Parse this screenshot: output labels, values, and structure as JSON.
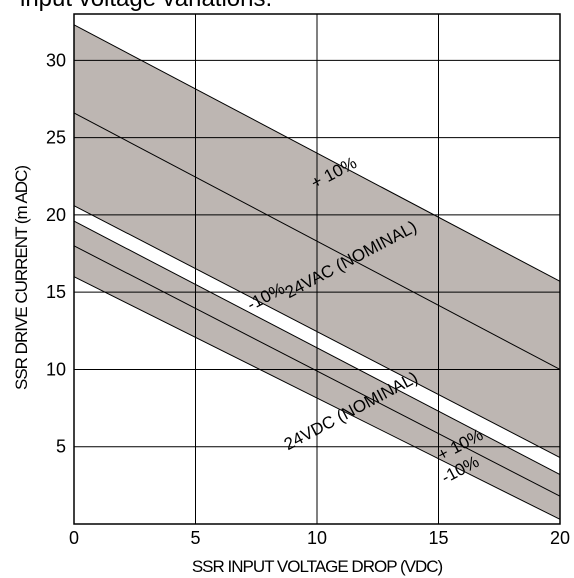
{
  "chart_data": {
    "type": "area",
    "title": "input voltage variations.",
    "xlabel": "SSR INPUT VOLTAGE DROP (VDC)",
    "ylabel": "SSR DRIVE CURRENT (m ADC)",
    "xlim": [
      0,
      20
    ],
    "ylim": [
      0,
      33
    ],
    "x_ticks": [
      "0",
      "5",
      "10",
      "15",
      "20"
    ],
    "y_ticks": [
      "5",
      "10",
      "15",
      "20",
      "25",
      "30"
    ],
    "grid": true,
    "bands": [
      {
        "name": "24VAC",
        "upper": [
          [
            0,
            32.3
          ],
          [
            20,
            15.7
          ]
        ],
        "lower": [
          [
            0,
            20.6
          ],
          [
            20,
            4.3
          ]
        ],
        "nominal": [
          [
            0,
            26.6
          ],
          [
            20,
            10
          ]
        ]
      },
      {
        "name": "24VDC",
        "upper": [
          [
            0,
            19.6
          ],
          [
            20,
            3.2
          ]
        ],
        "lower": [
          [
            0,
            16.0
          ],
          [
            20,
            0.3
          ]
        ],
        "nominal": [
          [
            0,
            18.0
          ],
          [
            20,
            1.8
          ]
        ]
      }
    ],
    "annotations": [
      {
        "text": "+ 10%",
        "x": 10.8,
        "y": 22.4
      },
      {
        "text": "24VAC (NOMINAL)",
        "x": 11.5,
        "y": 16.8
      },
      {
        "text": "-10%",
        "x": 8.0,
        "y": 14.4
      },
      {
        "text": "24VDC (NOMINAL)",
        "x": 11.5,
        "y": 7.0
      },
      {
        "text": "+ 10%",
        "x": 16.0,
        "y": 4.8
      },
      {
        "text": "-10%",
        "x": 16.0,
        "y": 3.2
      }
    ],
    "colors": {
      "band": "#bdb6b2",
      "line": "#000000",
      "grid": "#000000"
    }
  }
}
